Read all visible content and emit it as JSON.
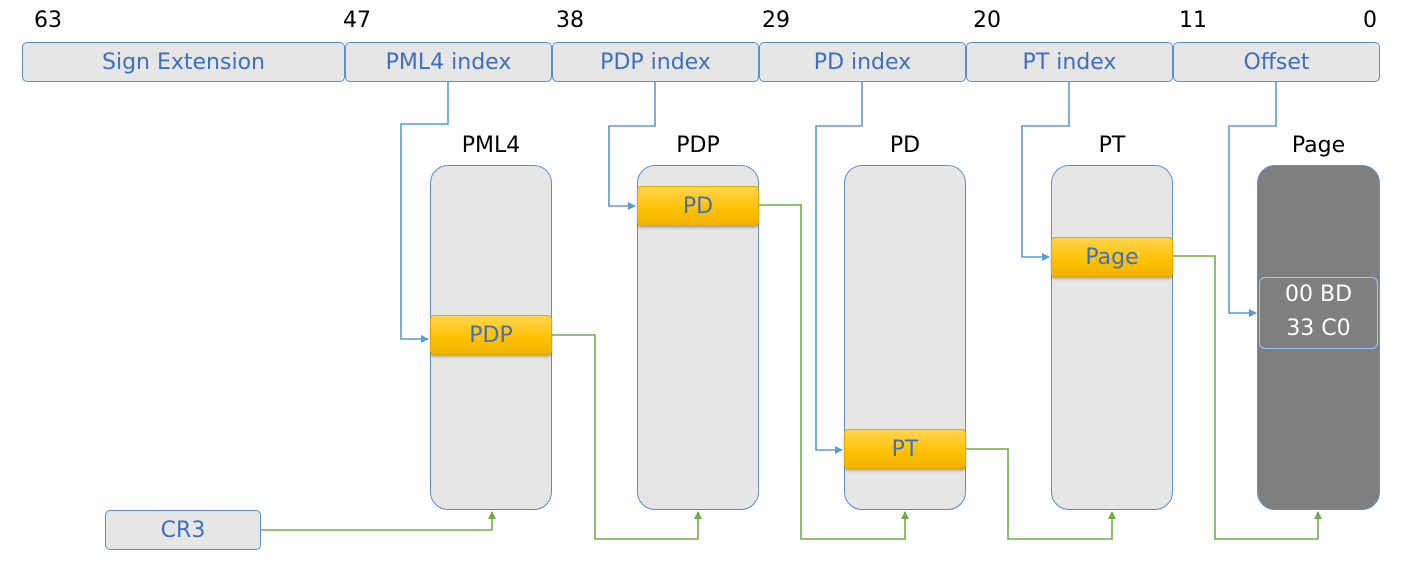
{
  "bit_numbers": [
    "63",
    "47",
    "38",
    "29",
    "20",
    "11",
    "0"
  ],
  "fields": [
    "Sign Extension",
    "PML4 index",
    "PDP index",
    "PD index",
    "PT index",
    "Offset"
  ],
  "tables": {
    "pml4": {
      "label": "PML4",
      "entry": "PDP"
    },
    "pdp": {
      "label": "PDP",
      "entry": "PD"
    },
    "pd": {
      "label": "PD",
      "entry": "PT"
    },
    "pt": {
      "label": "PT",
      "entry": "Page"
    }
  },
  "page": {
    "label": "Page",
    "bytes_line1": "00 BD",
    "bytes_line2": "33 C0"
  },
  "cr3": {
    "label": "CR3"
  },
  "colors": {
    "index_line": "#5b9bd5",
    "pointer_line": "#70ad47",
    "entry": "#ffc000",
    "page": "#7f7f7f"
  }
}
